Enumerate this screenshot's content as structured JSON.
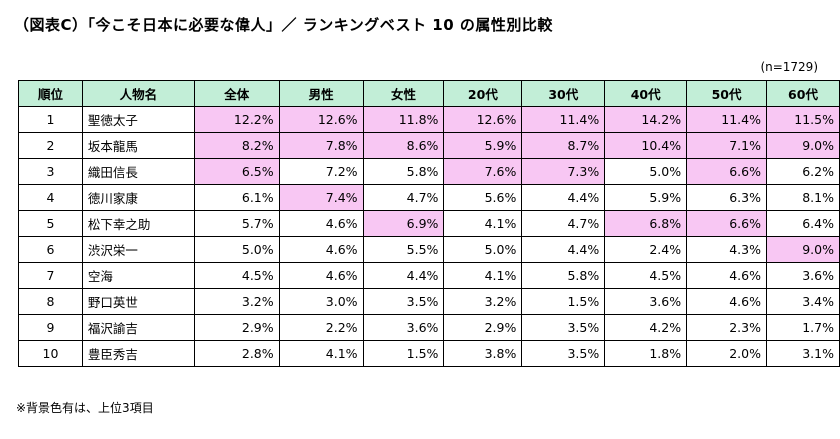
{
  "title": "（図表C）「今こそ日本に必要な偉人」／ ランキングベスト 10 の属性別比較",
  "sample_size": "(n=1729)",
  "columns": [
    "順位",
    "人物名",
    "全体",
    "男性",
    "女性",
    "20代",
    "30代",
    "40代",
    "50代",
    "60代"
  ],
  "highlight_color": "#f8c7f3",
  "header_color": "#c2eed7",
  "rows": [
    {
      "rank": "1",
      "name": "聖徳太子",
      "values": [
        "12.2%",
        "12.6%",
        "11.8%",
        "12.6%",
        "11.4%",
        "14.2%",
        "11.4%",
        "11.5%"
      ],
      "highlight": [
        true,
        true,
        true,
        true,
        true,
        true,
        true,
        true
      ]
    },
    {
      "rank": "2",
      "name": "坂本龍馬",
      "values": [
        "8.2%",
        "7.8%",
        "8.6%",
        "5.9%",
        "8.7%",
        "10.4%",
        "7.1%",
        "9.0%"
      ],
      "highlight": [
        true,
        true,
        true,
        true,
        true,
        true,
        true,
        true
      ]
    },
    {
      "rank": "3",
      "name": "織田信長",
      "values": [
        "6.5%",
        "7.2%",
        "5.8%",
        "7.6%",
        "7.3%",
        "5.0%",
        "6.6%",
        "6.2%"
      ],
      "highlight": [
        true,
        false,
        false,
        true,
        true,
        false,
        true,
        false
      ]
    },
    {
      "rank": "4",
      "name": "徳川家康",
      "values": [
        "6.1%",
        "7.4%",
        "4.7%",
        "5.6%",
        "4.4%",
        "5.9%",
        "6.3%",
        "8.1%"
      ],
      "highlight": [
        false,
        true,
        false,
        false,
        false,
        false,
        false,
        false
      ]
    },
    {
      "rank": "5",
      "name": "松下幸之助",
      "values": [
        "5.7%",
        "4.6%",
        "6.9%",
        "4.1%",
        "4.7%",
        "6.8%",
        "6.6%",
        "6.4%"
      ],
      "highlight": [
        false,
        false,
        true,
        false,
        false,
        true,
        true,
        false
      ]
    },
    {
      "rank": "6",
      "name": "渋沢栄一",
      "values": [
        "5.0%",
        "4.6%",
        "5.5%",
        "5.0%",
        "4.4%",
        "2.4%",
        "4.3%",
        "9.0%"
      ],
      "highlight": [
        false,
        false,
        false,
        false,
        false,
        false,
        false,
        true
      ]
    },
    {
      "rank": "7",
      "name": "空海",
      "values": [
        "4.5%",
        "4.6%",
        "4.4%",
        "4.1%",
        "5.8%",
        "4.5%",
        "4.6%",
        "3.6%"
      ],
      "highlight": [
        false,
        false,
        false,
        false,
        false,
        false,
        false,
        false
      ]
    },
    {
      "rank": "8",
      "name": "野口英世",
      "values": [
        "3.2%",
        "3.0%",
        "3.5%",
        "3.2%",
        "1.5%",
        "3.6%",
        "4.6%",
        "3.4%"
      ],
      "highlight": [
        false,
        false,
        false,
        false,
        false,
        false,
        false,
        false
      ]
    },
    {
      "rank": "9",
      "name": "福沢諭吉",
      "values": [
        "2.9%",
        "2.2%",
        "3.6%",
        "2.9%",
        "3.5%",
        "4.2%",
        "2.3%",
        "1.7%"
      ],
      "highlight": [
        false,
        false,
        false,
        false,
        false,
        false,
        false,
        false
      ]
    },
    {
      "rank": "10",
      "name": "豊臣秀吉",
      "values": [
        "2.8%",
        "4.1%",
        "1.5%",
        "3.8%",
        "3.5%",
        "1.8%",
        "2.0%",
        "3.1%"
      ],
      "highlight": [
        false,
        false,
        false,
        false,
        false,
        false,
        false,
        false
      ]
    }
  ],
  "footnote": "※背景色有は、上位3項目"
}
